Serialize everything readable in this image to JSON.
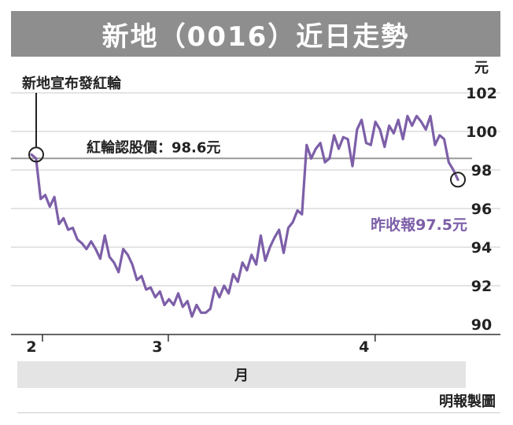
{
  "header": {
    "title": "新地（0016）近日走勢"
  },
  "footer": {
    "credit": "明報製圖"
  },
  "chart_data": {
    "type": "line",
    "title": "新地（0016）近日走勢",
    "xlabel": "月",
    "ylabel": "元",
    "ylim": [
      90,
      102
    ],
    "yticks": [
      90,
      92,
      94,
      96,
      98,
      100,
      102
    ],
    "xticks": [
      {
        "label": "2",
        "t": 0.0
      },
      {
        "label": "3",
        "t": 0.295
      },
      {
        "label": "4",
        "t": 0.78
      }
    ],
    "series": [
      {
        "color": "#7d5fa8",
        "values": [
          98.8,
          98.6,
          96.5,
          96.7,
          96.1,
          96.6,
          95.2,
          95.5,
          94.9,
          95.0,
          94.4,
          94.2,
          93.9,
          94.3,
          93.9,
          93.4,
          94.6,
          93.5,
          93.2,
          92.7,
          93.9,
          93.6,
          93.1,
          92.3,
          92.5,
          91.8,
          91.9,
          91.4,
          91.7,
          91.0,
          91.3,
          91.0,
          91.6,
          90.9,
          91.2,
          90.4,
          91.0,
          90.6,
          90.6,
          90.8,
          91.9,
          91.4,
          92.0,
          91.6,
          92.6,
          92.2,
          93.2,
          92.8,
          93.6,
          93.1,
          94.6,
          93.3,
          94.0,
          94.5,
          94.9,
          93.7,
          95.0,
          95.3,
          95.9,
          95.7,
          99.3,
          98.6,
          99.1,
          99.4,
          98.4,
          98.6,
          99.8,
          99.1,
          99.7,
          99.6,
          98.2,
          100.1,
          100.6,
          99.4,
          99.3,
          100.5,
          100.1,
          99.2,
          100.3,
          99.9,
          100.6,
          99.6,
          100.8,
          100.3,
          100.8,
          100.5,
          100.1,
          100.8,
          99.3,
          99.8,
          99.6,
          98.4,
          98.0,
          97.5
        ]
      }
    ],
    "reference_line": {
      "value": 98.6,
      "label": "紅輪認股價：98.6元"
    },
    "annotations": {
      "event_label": "新地宣布發紅輪",
      "last_label": "昨收報97.5元",
      "last_value": 97.5
    },
    "colors": {
      "line": "#7d5fa8",
      "reference": "#9a9a9a",
      "grid": "#c8c8c8"
    },
    "grid": true
  }
}
